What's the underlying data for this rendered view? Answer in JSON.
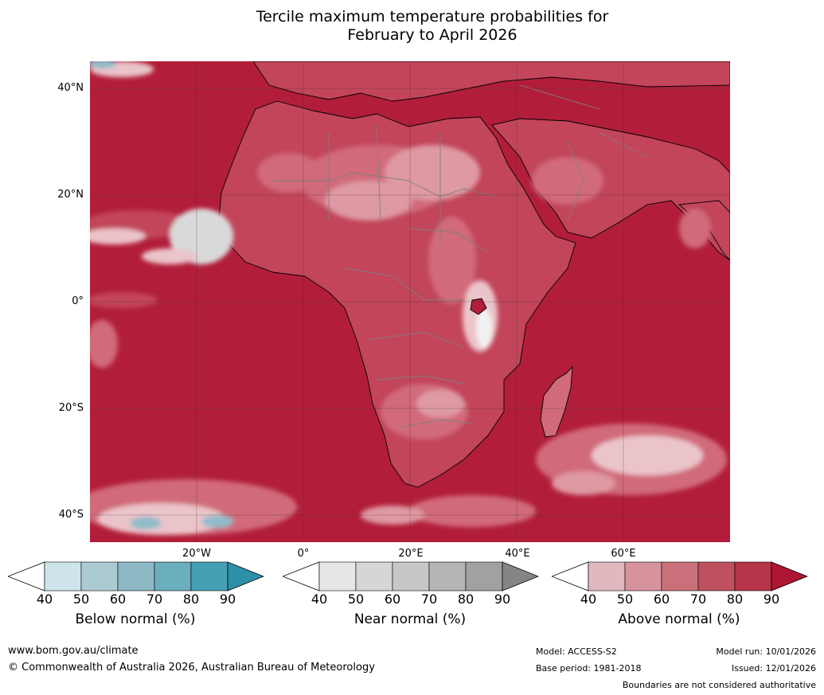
{
  "title": {
    "line1": "Tercile maximum temperature probabilities for",
    "line2": "February to April 2026"
  },
  "map": {
    "lat_labels": [
      "40°N",
      "20°N",
      "0°",
      "20°S",
      "40°S"
    ],
    "lon_labels": [
      "20°W",
      "0°",
      "20°E",
      "40°E",
      "60°E"
    ],
    "colors": {
      "above_base": "#b21e3a",
      "above_80": "#c2455a",
      "above_70": "#d16b7a",
      "above_60": "#de99a3",
      "above_50": "#ebc4c9",
      "near": "#d9d9d9",
      "below": "#8fbcc9",
      "border": "#7f7f7f",
      "coast": "#000000"
    }
  },
  "colorbars": [
    {
      "title": "Below normal (%)",
      "ticks": [
        "40",
        "50",
        "60",
        "70",
        "80",
        "90"
      ],
      "colors": [
        "#cfe4ea",
        "#abcad2",
        "#8cb9c4",
        "#6baebd",
        "#45a0b4"
      ],
      "arrow_color": "#2e8fa9"
    },
    {
      "title": "Near normal (%)",
      "ticks": [
        "40",
        "50",
        "60",
        "70",
        "80",
        "90"
      ],
      "colors": [
        "#e6e6e6",
        "#d6d6d6",
        "#c7c7c7",
        "#b5b5b5",
        "#a1a1a1"
      ],
      "arrow_color": "#858585"
    },
    {
      "title": "Above normal (%)",
      "ticks": [
        "40",
        "50",
        "60",
        "70",
        "80",
        "90"
      ],
      "colors": [
        "#e2b8bf",
        "#d6939d",
        "#ca707b",
        "#be505f",
        "#b53448"
      ],
      "arrow_color": "#ad1533"
    }
  ],
  "footer": {
    "website": "www.bom.gov.au/climate",
    "copyright": "© Commonwealth of Australia 2026, Australian Bureau of Meteorology",
    "model": "Model: ACCESS-S2",
    "base_period": "Base period: 1981-2018",
    "model_run": "Model run: 10/01/2026",
    "issued": "Issued: 12/01/2026",
    "disclaimer": "Boundaries are not considered authoritative"
  }
}
